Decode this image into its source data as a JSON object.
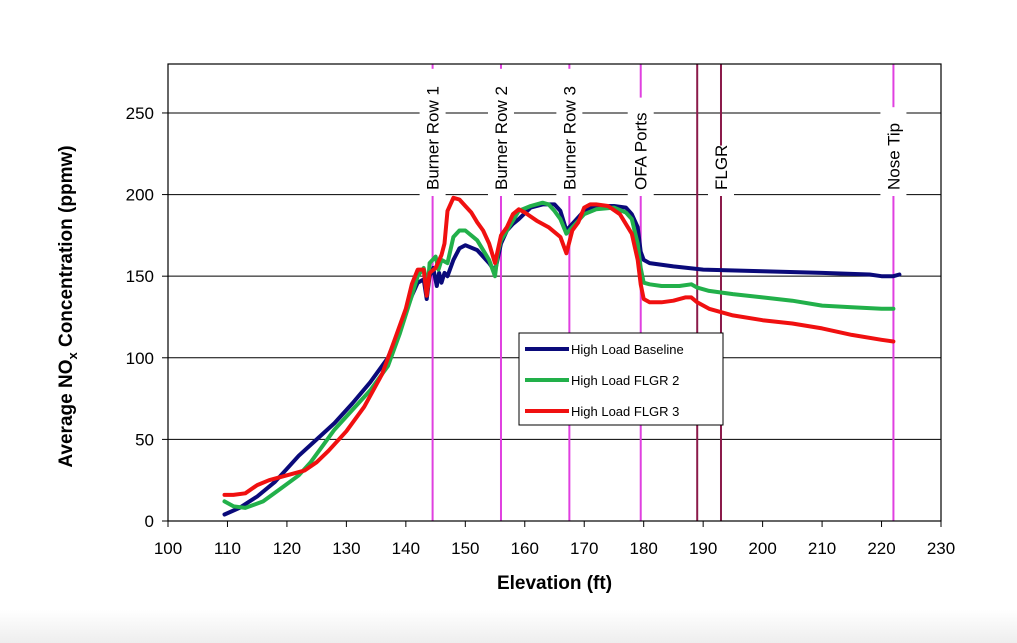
{
  "chart_data": {
    "type": "line",
    "xlabel": "Elevation (ft)",
    "ylabel_main": "Average NO",
    "ylabel_sub": "x",
    "ylabel_rest": " Concentration (ppmw)",
    "xlim": [
      100,
      230
    ],
    "ylim": [
      0,
      280
    ],
    "xticks": [
      100,
      110,
      120,
      130,
      140,
      150,
      160,
      170,
      180,
      190,
      200,
      210,
      220,
      230
    ],
    "yticks": [
      0,
      50,
      100,
      150,
      200,
      250
    ],
    "grid": "horizontal",
    "legend_position": "center-right",
    "markers": [
      {
        "label": "Burner Row 1",
        "x": 144.5,
        "color": "#e040e0"
      },
      {
        "label": "Burner Row 2",
        "x": 156,
        "color": "#e040e0"
      },
      {
        "label": "Burner Row 3",
        "x": 167.5,
        "color": "#e040e0"
      },
      {
        "label": "OFA Ports",
        "x": 179.5,
        "color": "#e040e0"
      },
      {
        "label": "",
        "x": 189,
        "color": "#8b1a4a"
      },
      {
        "label": "FLGR",
        "x": 193,
        "color": "#8b1a4a"
      },
      {
        "label": "Nose Tip",
        "x": 222,
        "color": "#e040e0"
      }
    ],
    "series": [
      {
        "name": "High Load Baseline",
        "color": "#0a0a7a",
        "points": [
          [
            109.5,
            4
          ],
          [
            112,
            8
          ],
          [
            115,
            15
          ],
          [
            118,
            24
          ],
          [
            120,
            32
          ],
          [
            122,
            40
          ],
          [
            125,
            50
          ],
          [
            128,
            60
          ],
          [
            131,
            72
          ],
          [
            134,
            85
          ],
          [
            137,
            100
          ],
          [
            139,
            118
          ],
          [
            141,
            138
          ],
          [
            142,
            146
          ],
          [
            143,
            148
          ],
          [
            143.5,
            136
          ],
          [
            144,
            150
          ],
          [
            144.6,
            155
          ],
          [
            145.2,
            144
          ],
          [
            145.6,
            152
          ],
          [
            146,
            146
          ],
          [
            146.5,
            152
          ],
          [
            147,
            150
          ],
          [
            148,
            160
          ],
          [
            149,
            167
          ],
          [
            150,
            169
          ],
          [
            152,
            166
          ],
          [
            154,
            158
          ],
          [
            155,
            153
          ],
          [
            156,
            170
          ],
          [
            157,
            178
          ],
          [
            158,
            182
          ],
          [
            159,
            185
          ],
          [
            161,
            192
          ],
          [
            163,
            194
          ],
          [
            165,
            194
          ],
          [
            166,
            190
          ],
          [
            167,
            178
          ],
          [
            168,
            182
          ],
          [
            170,
            190
          ],
          [
            172,
            193
          ],
          [
            175,
            193
          ],
          [
            177,
            192
          ],
          [
            178,
            188
          ],
          [
            179,
            180
          ],
          [
            179.5,
            165
          ],
          [
            180,
            160
          ],
          [
            181,
            158
          ],
          [
            185,
            156
          ],
          [
            190,
            154
          ],
          [
            200,
            153
          ],
          [
            210,
            152
          ],
          [
            218,
            151
          ],
          [
            220,
            150
          ],
          [
            222,
            150
          ],
          [
            223,
            151
          ]
        ]
      },
      {
        "name": "High Load FLGR 2",
        "color": "#22b04a",
        "points": [
          [
            109.5,
            12
          ],
          [
            111,
            9
          ],
          [
            113,
            8
          ],
          [
            116,
            12
          ],
          [
            119,
            20
          ],
          [
            122,
            28
          ],
          [
            124,
            36
          ],
          [
            126,
            46
          ],
          [
            128,
            56
          ],
          [
            131,
            68
          ],
          [
            134,
            80
          ],
          [
            137,
            95
          ],
          [
            139,
            115
          ],
          [
            141,
            138
          ],
          [
            142,
            150
          ],
          [
            143,
            155
          ],
          [
            143.7,
            143
          ],
          [
            144,
            158
          ],
          [
            145,
            162
          ],
          [
            145.5,
            154
          ],
          [
            146,
            160
          ],
          [
            147,
            158
          ],
          [
            148,
            174
          ],
          [
            149,
            178
          ],
          [
            150,
            178
          ],
          [
            151,
            175
          ],
          [
            152,
            172
          ],
          [
            154,
            160
          ],
          [
            155,
            150
          ],
          [
            155.5,
            165
          ],
          [
            156,
            172
          ],
          [
            157,
            178
          ],
          [
            158,
            184
          ],
          [
            159,
            190
          ],
          [
            161,
            193
          ],
          [
            163,
            195
          ],
          [
            164,
            194
          ],
          [
            165,
            190
          ],
          [
            166,
            185
          ],
          [
            167,
            176
          ],
          [
            168,
            180
          ],
          [
            169,
            184
          ],
          [
            170,
            188
          ],
          [
            172,
            191
          ],
          [
            175,
            192
          ],
          [
            177,
            189
          ],
          [
            178,
            185
          ],
          [
            179,
            170
          ],
          [
            179.5,
            155
          ],
          [
            180,
            146
          ],
          [
            181,
            145
          ],
          [
            183,
            144
          ],
          [
            186,
            144
          ],
          [
            188,
            145
          ],
          [
            189,
            143
          ],
          [
            191,
            141
          ],
          [
            195,
            139
          ],
          [
            200,
            137
          ],
          [
            205,
            135
          ],
          [
            210,
            132
          ],
          [
            215,
            131
          ],
          [
            220,
            130
          ],
          [
            222,
            130
          ]
        ]
      },
      {
        "name": "High Load FLGR 3",
        "color": "#f01010",
        "points": [
          [
            109.5,
            16
          ],
          [
            111,
            16
          ],
          [
            113,
            17
          ],
          [
            115,
            22
          ],
          [
            117,
            25
          ],
          [
            120,
            28
          ],
          [
            123,
            31
          ],
          [
            125,
            36
          ],
          [
            127,
            43
          ],
          [
            130,
            55
          ],
          [
            133,
            70
          ],
          [
            136,
            90
          ],
          [
            138,
            110
          ],
          [
            140,
            130
          ],
          [
            141,
            145
          ],
          [
            142,
            154
          ],
          [
            143,
            154
          ],
          [
            143.5,
            138
          ],
          [
            144,
            152
          ],
          [
            145,
            155
          ],
          [
            146,
            163
          ],
          [
            146.5,
            170
          ],
          [
            147,
            190
          ],
          [
            148,
            198
          ],
          [
            149,
            197
          ],
          [
            150,
            193
          ],
          [
            151,
            189
          ],
          [
            152,
            183
          ],
          [
            153,
            178
          ],
          [
            154,
            170
          ],
          [
            155,
            158
          ],
          [
            156,
            175
          ],
          [
            157,
            180
          ],
          [
            158,
            188
          ],
          [
            159,
            191
          ],
          [
            160,
            189
          ],
          [
            162,
            184
          ],
          [
            164,
            180
          ],
          [
            166,
            174
          ],
          [
            167,
            164
          ],
          [
            168,
            178
          ],
          [
            169,
            183
          ],
          [
            170,
            192
          ],
          [
            171,
            194
          ],
          [
            172,
            194
          ],
          [
            174,
            193
          ],
          [
            176,
            188
          ],
          [
            178,
            176
          ],
          [
            179,
            160
          ],
          [
            179.5,
            145
          ],
          [
            180,
            136
          ],
          [
            181,
            134
          ],
          [
            183,
            134
          ],
          [
            185,
            135
          ],
          [
            187,
            137
          ],
          [
            188,
            137
          ],
          [
            189,
            134
          ],
          [
            191,
            130
          ],
          [
            195,
            126
          ],
          [
            200,
            123
          ],
          [
            205,
            121
          ],
          [
            210,
            118
          ],
          [
            215,
            114
          ],
          [
            220,
            111
          ],
          [
            222,
            110
          ]
        ]
      }
    ]
  }
}
